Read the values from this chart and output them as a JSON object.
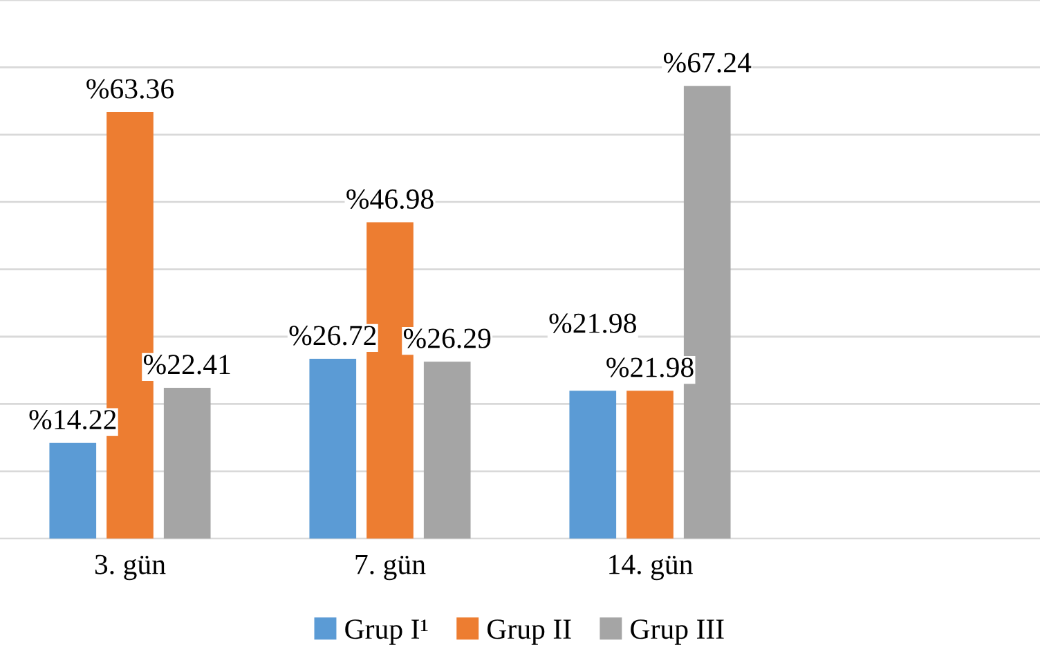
{
  "chart_data": {
    "type": "bar",
    "categories": [
      "3. gün",
      "7. gün",
      "14. gün"
    ],
    "series": [
      {
        "name": "Grup I¹",
        "color": "#5b9bd5",
        "values": [
          14.22,
          26.72,
          21.98
        ],
        "value_labels": [
          "%14.22",
          "%26.72",
          "%21.98"
        ]
      },
      {
        "name": "Grup II",
        "color": "#ed7d31",
        "values": [
          63.36,
          46.98,
          21.98
        ],
        "value_labels": [
          "%63.36",
          "%46.98",
          "%21.98"
        ]
      },
      {
        "name": "Grup III",
        "color": "#a5a5a5",
        "values": [
          22.41,
          26.29,
          67.24
        ],
        "value_labels": [
          "%22.41",
          "%26.29",
          "%67.24"
        ]
      }
    ],
    "ylim": [
      0,
      80
    ],
    "yticks": [
      {
        "value": 0,
        "label": null
      },
      {
        "value": 10,
        "label": null
      },
      {
        "value": 20,
        "label": null
      },
      {
        "value": 30,
        "label": null
      },
      {
        "value": 40,
        "label": null
      },
      {
        "value": 50,
        "label": null
      },
      {
        "value": 60,
        "label": null
      },
      {
        "value": 70,
        "label": null
      },
      {
        "value": 80,
        "label": null
      }
    ],
    "tick_labels": "x",
    "grid": "y",
    "legend": "bottom"
  }
}
